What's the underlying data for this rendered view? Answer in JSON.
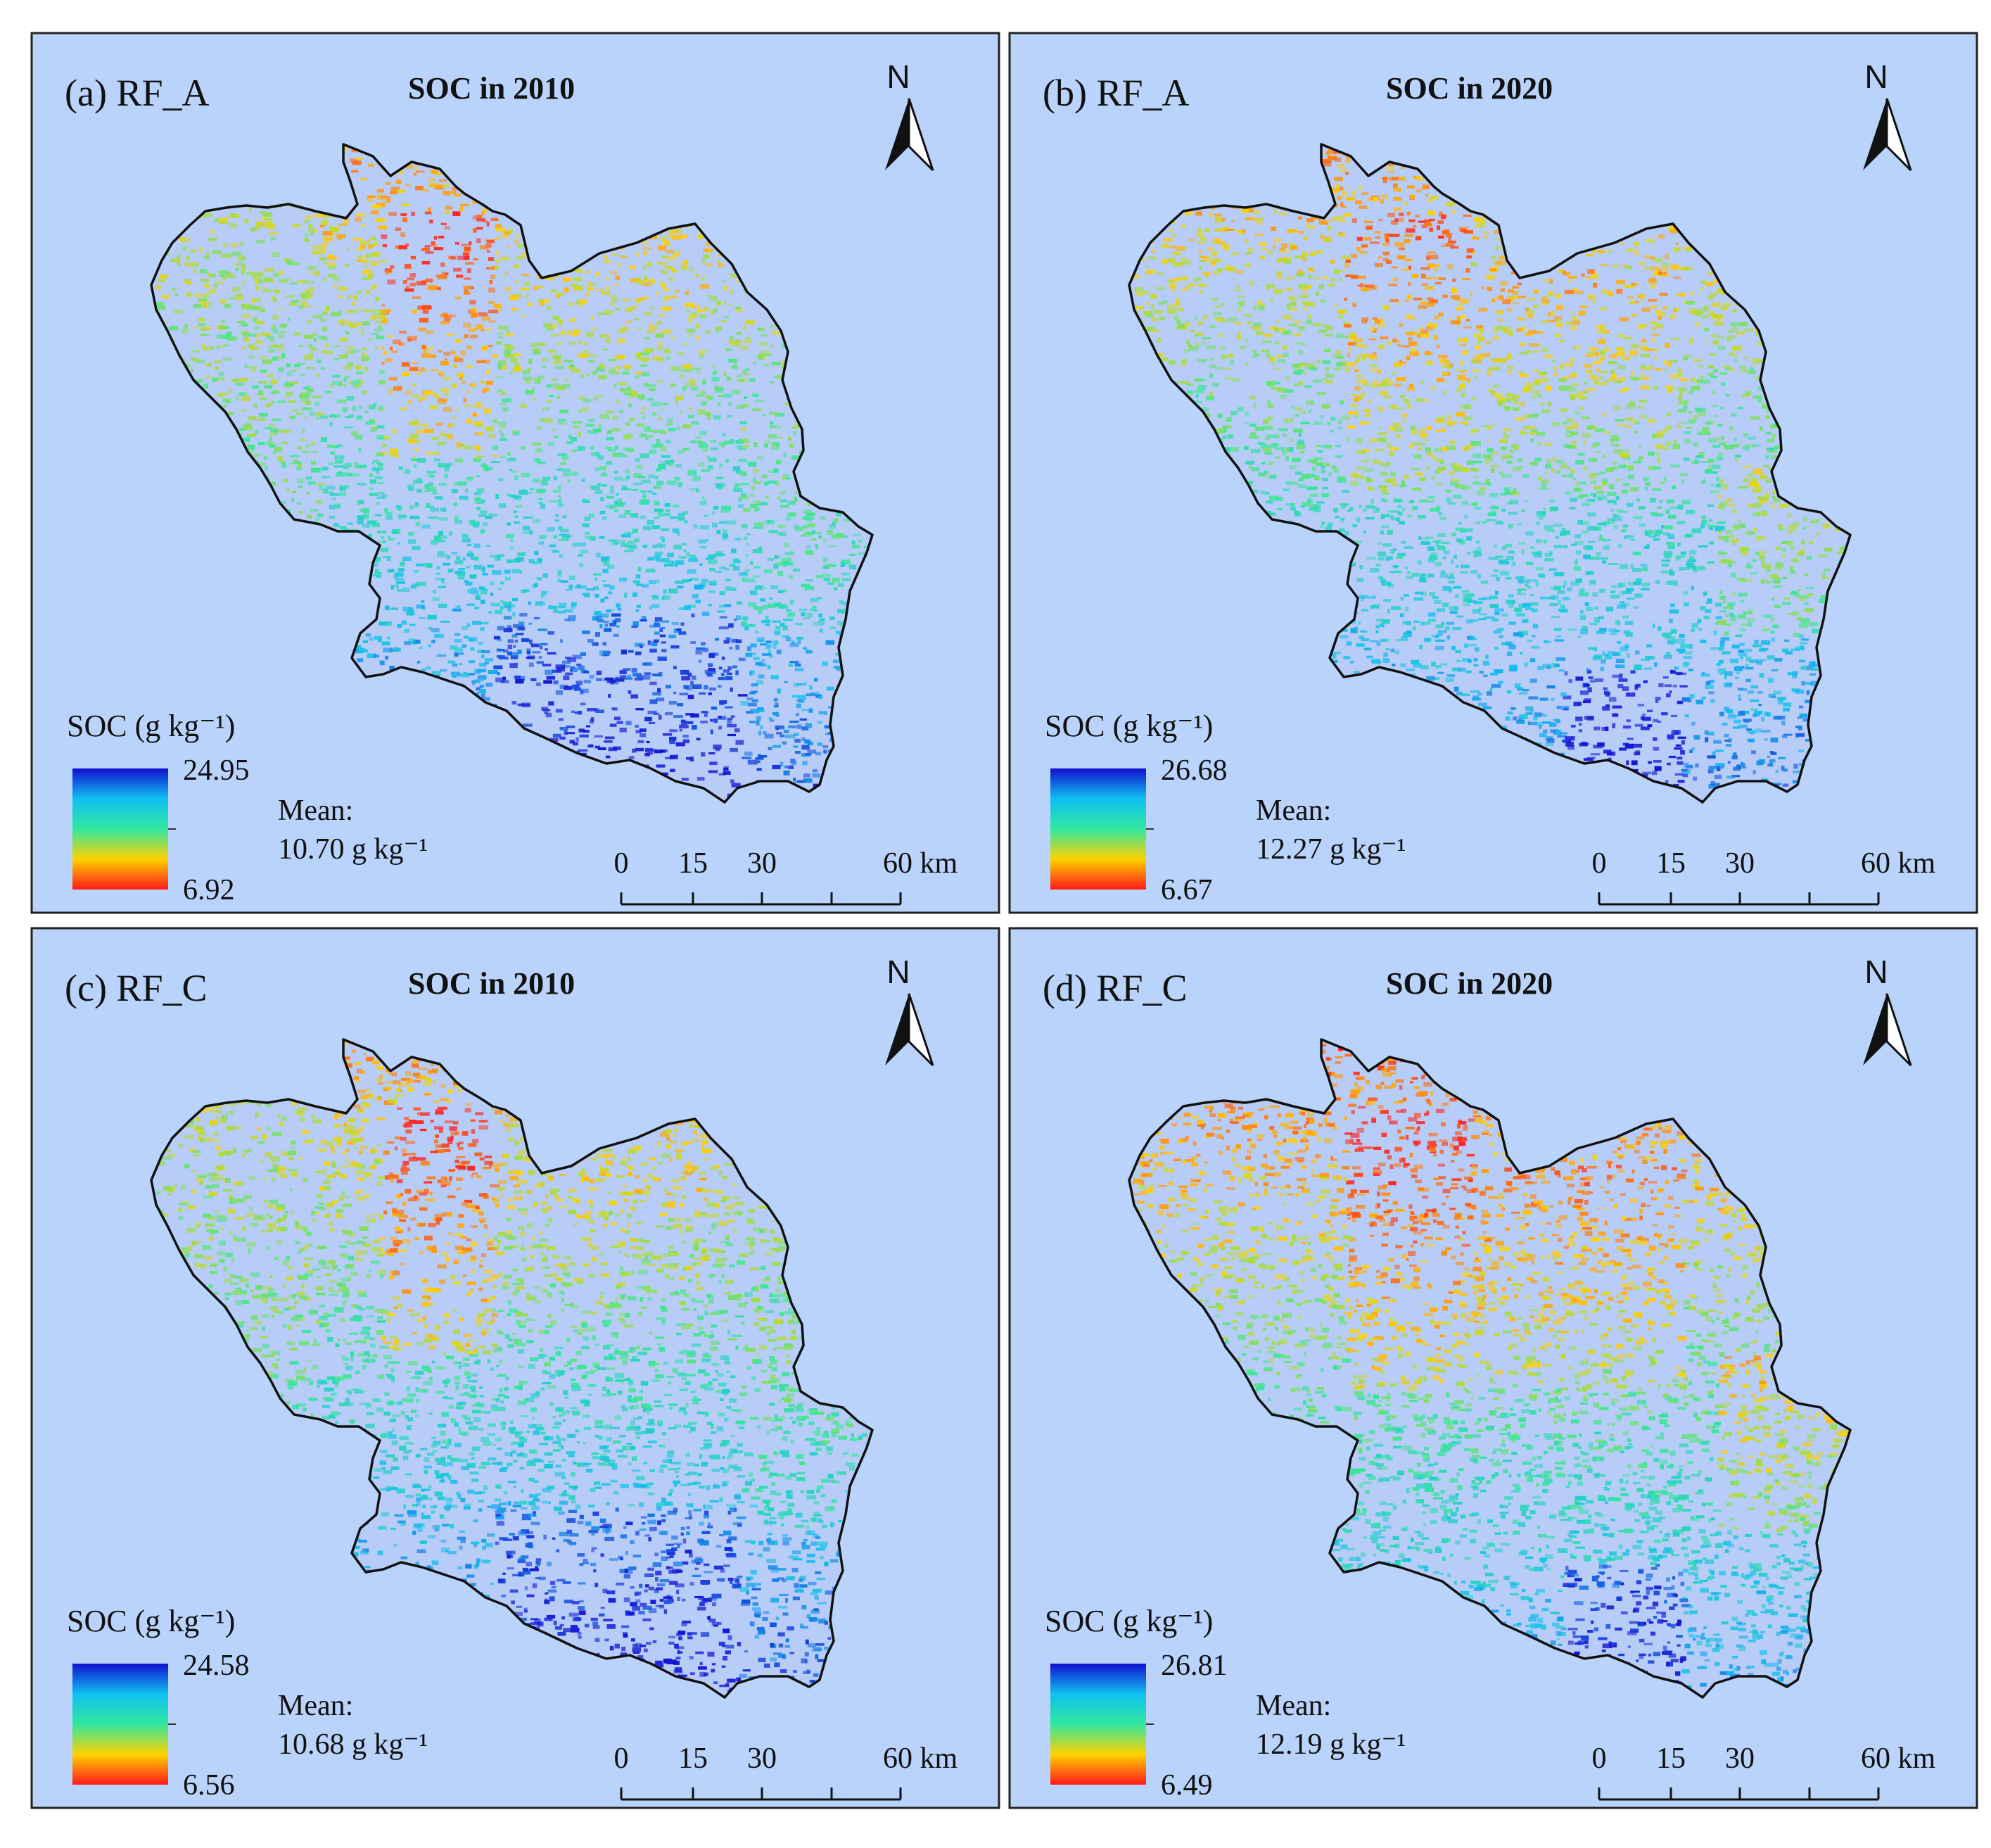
{
  "panels": [
    {
      "id": "a",
      "label": "(a) RF_A",
      "title": "SOC in 2010",
      "north": "N",
      "legend": {
        "title": "SOC (g kg⁻¹)",
        "max": "24.95",
        "min": "6.92"
      },
      "mean": {
        "label": "Mean:",
        "value": "10.70 g kg⁻¹"
      },
      "pattern": "a"
    },
    {
      "id": "b",
      "label": "(b) RF_A",
      "title": "SOC in 2020",
      "north": "N",
      "legend": {
        "title": "SOC (g kg⁻¹)",
        "max": "26.68",
        "min": "6.67"
      },
      "mean": {
        "label": "Mean:",
        "value": "12.27 g kg⁻¹"
      },
      "pattern": "b"
    },
    {
      "id": "c",
      "label": "(c) RF_C",
      "title": "SOC in 2010",
      "north": "N",
      "legend": {
        "title": "SOC (g kg⁻¹)",
        "max": "24.58",
        "min": "6.56"
      },
      "mean": {
        "label": "Mean:",
        "value": "10.68 g kg⁻¹"
      },
      "pattern": "c"
    },
    {
      "id": "d",
      "label": "(d) RF_C",
      "title": "SOC in 2020",
      "north": "N",
      "legend": {
        "title": "SOC (g kg⁻¹)",
        "max": "26.81",
        "min": "6.49"
      },
      "mean": {
        "label": "Mean:",
        "value": "12.19 g kg⁻¹"
      },
      "pattern": "d"
    }
  ],
  "scale_bar": {
    "ticks": [
      "0",
      "15",
      "30",
      "60 km"
    ]
  },
  "colors": {
    "map_background": "#b9d3fb",
    "low": "#ff1a1a",
    "mid_low": "#ffd200",
    "mid": "#30e8a0",
    "mid_high": "#10b8f0",
    "high": "#1010d0"
  }
}
